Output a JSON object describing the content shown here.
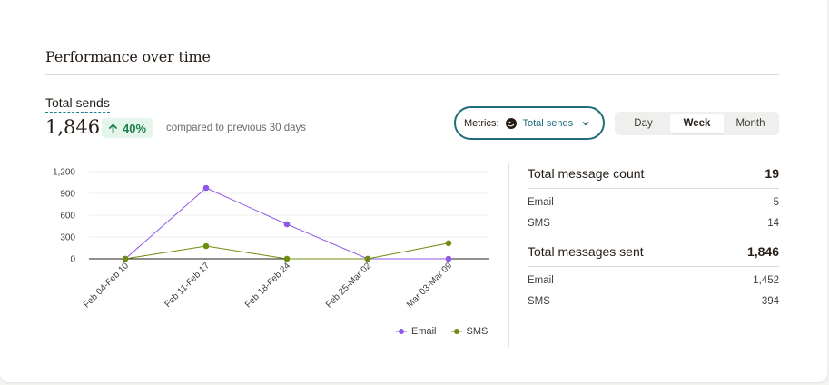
{
  "section": {
    "title": "Performance over time"
  },
  "metric": {
    "label": "Total sends",
    "value": "1,846",
    "change": "40%",
    "compare_text": "compared to previous 30 days"
  },
  "metrics_dropdown": {
    "label": "Metrics:",
    "value": "Total sends"
  },
  "time_toggle": {
    "options": [
      "Day",
      "Week",
      "Month"
    ],
    "selected": "Week"
  },
  "colors": {
    "email": "#8f57e8",
    "sms": "#6e8b12",
    "accent": "#1f6e7a",
    "positive": "#1a7f4b"
  },
  "chart_data": {
    "type": "line",
    "categories": [
      "Feb 04-Feb 10",
      "Feb 11-Feb 17",
      "Feb 18-Feb 24",
      "Feb 25-Mar 02",
      "Mar 03-Mar 09"
    ],
    "series": [
      {
        "name": "Email",
        "values": [
          0,
          975,
          475,
          0,
          0
        ]
      },
      {
        "name": "SMS",
        "values": [
          0,
          175,
          0,
          0,
          215
        ]
      }
    ],
    "yticks": [
      "0",
      "300",
      "600",
      "900",
      "1,200"
    ],
    "ylim": [
      0,
      1200
    ],
    "legend": "bottom-right",
    "grid": true
  },
  "stats": {
    "count": {
      "label": "Total message count",
      "value": "19",
      "rows": [
        {
          "label": "Email",
          "value": "5"
        },
        {
          "label": "SMS",
          "value": "14"
        }
      ]
    },
    "sent": {
      "label": "Total messages sent",
      "value": "1,846",
      "rows": [
        {
          "label": "Email",
          "value": "1,452"
        },
        {
          "label": "SMS",
          "value": "394"
        }
      ]
    }
  }
}
